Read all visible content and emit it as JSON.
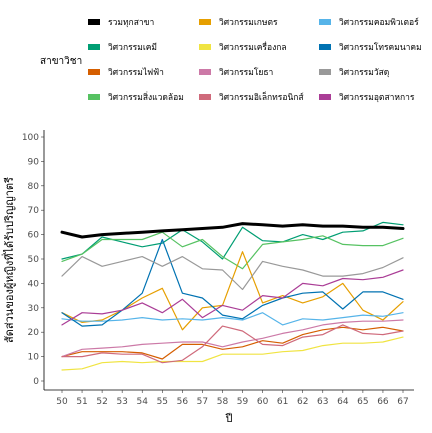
{
  "chart_data": {
    "type": "line",
    "xlabel": "ปี",
    "ylabel": "สัดส่วนของผู้หญิงที่ได้รับปริญญาตรี",
    "xlim": [
      50,
      67
    ],
    "ylim": [
      0,
      100
    ],
    "x": [
      50,
      51,
      52,
      53,
      54,
      55,
      56,
      57,
      58,
      59,
      60,
      61,
      62,
      63,
      64,
      65,
      66,
      67
    ],
    "yticks": [
      0,
      10,
      20,
      30,
      40,
      50,
      60,
      70,
      80,
      90,
      100
    ],
    "grid": false,
    "legend": {
      "title": "สาขาวิชา",
      "position": "top",
      "columns": 3
    },
    "series": [
      {
        "name": "รวมทุกสาขา",
        "color": "#000000",
        "width": 3.0,
        "values": [
          61,
          59,
          60,
          60.5,
          61,
          61.5,
          62,
          62.5,
          63,
          64.5,
          64,
          63.5,
          64,
          63.5,
          63.5,
          63,
          63,
          62.5
        ]
      },
      {
        "name": "วิศวกรรมเคมี",
        "color": "#009E73",
        "width": 1.2,
        "values": [
          50,
          52,
          59,
          57,
          55,
          56.5,
          62,
          57,
          50,
          63,
          57.5,
          57,
          60,
          58,
          61,
          61.5,
          65,
          64
        ]
      },
      {
        "name": "วิศวกรรมไฟฟ้า",
        "color": "#D55E00",
        "width": 1.2,
        "values": [
          10,
          12,
          12,
          12,
          11.5,
          9,
          15,
          15,
          13,
          14,
          16.5,
          15.5,
          19,
          21,
          22,
          21,
          22,
          20.5
        ]
      },
      {
        "name": "วิศวกรรมสิ่งแวดล้อม",
        "color": "#56C262",
        "width": 1.2,
        "values": [
          49,
          52,
          58,
          58,
          58,
          61,
          55,
          58,
          51,
          46,
          56,
          57,
          58,
          59.5,
          56,
          55.5,
          55.5,
          58.5
        ]
      },
      {
        "name": "วิศวกรรมเกษตร",
        "color": "#E69F00",
        "width": 1.2,
        "values": [
          28,
          24,
          25,
          29,
          34,
          38,
          21,
          30,
          31,
          53,
          32,
          35,
          32,
          34.5,
          40,
          29,
          25,
          32.5
        ]
      },
      {
        "name": "วิศวกรรมเครื่องกล",
        "color": "#F0E442",
        "width": 1.2,
        "values": [
          4.5,
          5,
          7.5,
          8,
          7.5,
          8,
          8,
          8,
          11,
          11,
          11,
          12,
          12.5,
          14.5,
          15.5,
          15.5,
          16,
          18
        ]
      },
      {
        "name": "วิศวกรรมโยธา",
        "color": "#CC79A7",
        "width": 1.2,
        "values": [
          10,
          13,
          13.5,
          14,
          15,
          15.5,
          16,
          16,
          14,
          16,
          17.5,
          19.5,
          21,
          23,
          24,
          24.5,
          24.5,
          25
        ]
      },
      {
        "name": "วิศวกรรมอิเล็กทรอนิกส์",
        "color": "#CF6A7B",
        "width": 1.2,
        "values": [
          10,
          10,
          11.5,
          11,
          11,
          7.5,
          8.5,
          14,
          22.5,
          20.5,
          15,
          14.5,
          18,
          19,
          23,
          19.5,
          19,
          20.5
        ]
      },
      {
        "name": "วิศวกรรมคอมพิวเตอร์",
        "color": "#56B4E9",
        "width": 1.2,
        "values": [
          25.5,
          24.5,
          24.5,
          25,
          26,
          25,
          25.5,
          25,
          26,
          25,
          28,
          23,
          25.5,
          25,
          26,
          27,
          26.5,
          28
        ]
      },
      {
        "name": "วิศวกรรมโทรคมนาคม",
        "color": "#0072B2",
        "width": 1.2,
        "values": [
          28,
          22.5,
          23,
          29,
          36,
          58,
          36,
          34,
          27,
          25.5,
          31,
          34,
          36,
          36.5,
          29.5,
          36.5,
          36.5,
          33.5
        ]
      },
      {
        "name": "วิศวกรรมวัสดุ",
        "color": "#999999",
        "width": 1.2,
        "values": [
          43,
          51,
          47,
          49,
          51,
          47,
          51,
          46,
          45.5,
          37.5,
          49,
          47,
          45.5,
          43,
          43,
          44,
          46.5,
          50.5
        ]
      },
      {
        "name": "วิศวกรรมอุตสาหการ",
        "color": "#AA3D96",
        "width": 1.2,
        "values": [
          23,
          28,
          27.5,
          29,
          32,
          28,
          33.5,
          26,
          31,
          29,
          35,
          34,
          40,
          39,
          42,
          41.5,
          42.5,
          45.5
        ]
      }
    ]
  }
}
